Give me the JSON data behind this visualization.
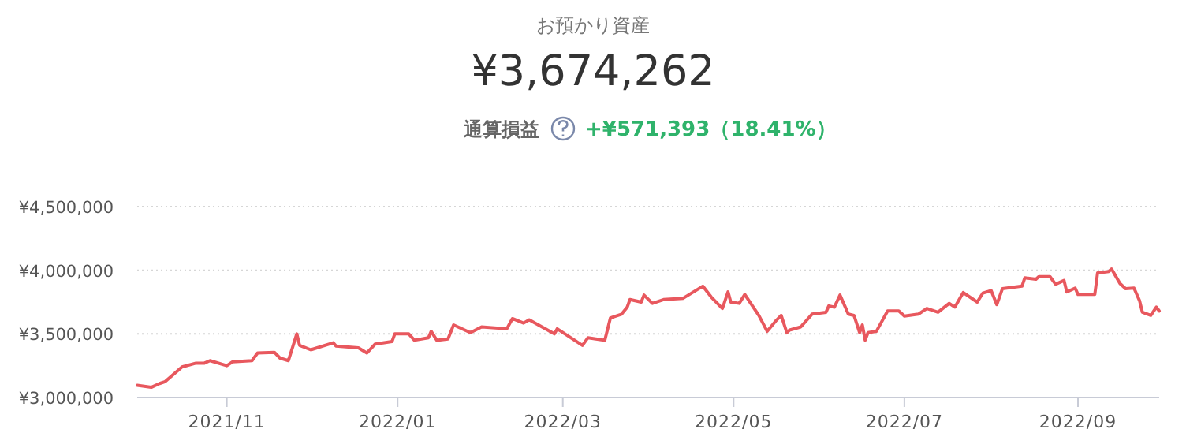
{
  "chart_data": {
    "type": "line",
    "title": "お預かり資産",
    "subtitle": "¥3,674,262",
    "annotations": [
      "通算損益",
      "+¥571,393（18.41%）"
    ],
    "x": [
      "2021-09-30",
      "2021-10-05",
      "2021-10-08",
      "2021-10-10",
      "2021-10-16",
      "2021-10-21",
      "2021-10-24",
      "2021-10-26",
      "2021-11-01",
      "2021-11-03",
      "2021-11-10",
      "2021-11-12",
      "2021-11-18",
      "2021-11-20",
      "2021-11-23",
      "2021-11-26",
      "2021-11-27",
      "2021-12-01",
      "2021-12-09",
      "2021-12-10",
      "2021-12-18",
      "2021-12-21",
      "2021-12-24",
      "2021-12-30",
      "2021-12-31",
      "2022-01-05",
      "2022-01-07",
      "2022-01-12",
      "2022-01-13",
      "2022-01-15",
      "2022-01-19",
      "2022-01-21",
      "2022-01-27",
      "2022-01-31",
      "2022-02-09",
      "2022-02-11",
      "2022-02-15",
      "2022-02-17",
      "2022-02-26",
      "2022-02-27",
      "2022-03-08",
      "2022-03-10",
      "2022-03-16",
      "2022-03-18",
      "2022-03-22",
      "2022-03-24",
      "2022-03-25",
      "2022-03-29",
      "2022-03-30",
      "2022-04-02",
      "2022-04-06",
      "2022-04-13",
      "2022-04-20",
      "2022-04-23",
      "2022-04-27",
      "2022-04-29",
      "2022-04-30",
      "2022-05-03",
      "2022-05-05",
      "2022-05-10",
      "2022-05-13",
      "2022-05-16",
      "2022-05-18",
      "2022-05-20",
      "2022-05-21",
      "2022-05-25",
      "2022-05-29",
      "2022-06-03",
      "2022-06-04",
      "2022-06-06",
      "2022-06-08",
      "2022-06-11",
      "2022-06-13",
      "2022-06-15",
      "2022-06-16",
      "2022-06-17",
      "2022-06-18",
      "2022-06-21",
      "2022-06-25",
      "2022-06-29",
      "2022-07-01",
      "2022-07-06",
      "2022-07-09",
      "2022-07-13",
      "2022-07-17",
      "2022-07-19",
      "2022-07-22",
      "2022-07-27",
      "2022-07-29",
      "2022-08-01",
      "2022-08-03",
      "2022-08-05",
      "2022-08-12",
      "2022-08-13",
      "2022-08-17",
      "2022-08-18",
      "2022-08-22",
      "2022-08-24",
      "2022-08-27",
      "2022-08-28",
      "2022-08-31",
      "2022-09-01",
      "2022-09-07",
      "2022-09-08",
      "2022-09-12",
      "2022-09-13",
      "2022-09-16",
      "2022-09-18",
      "2022-09-21",
      "2022-09-23",
      "2022-09-24",
      "2022-09-27",
      "2022-09-29",
      "2022-09-30"
    ],
    "series": [
      {
        "color": "#e8585e",
        "values": [
          3096000,
          3080000,
          3110000,
          3125000,
          3240000,
          3270000,
          3270000,
          3290000,
          3250000,
          3280000,
          3290000,
          3350000,
          3355000,
          3310000,
          3290000,
          3500000,
          3410000,
          3375000,
          3430000,
          3405000,
          3390000,
          3350000,
          3420000,
          3440000,
          3500000,
          3500000,
          3450000,
          3470000,
          3520000,
          3450000,
          3460000,
          3570000,
          3510000,
          3555000,
          3540000,
          3620000,
          3585000,
          3610000,
          3500000,
          3540000,
          3410000,
          3470000,
          3450000,
          3625000,
          3655000,
          3710000,
          3770000,
          3750000,
          3805000,
          3740000,
          3770000,
          3780000,
          3875000,
          3790000,
          3700000,
          3830000,
          3750000,
          3740000,
          3810000,
          3645000,
          3520000,
          3600000,
          3645000,
          3510000,
          3530000,
          3555000,
          3655000,
          3670000,
          3720000,
          3710000,
          3805000,
          3655000,
          3645000,
          3510000,
          3570000,
          3450000,
          3510000,
          3520000,
          3680000,
          3680000,
          3640000,
          3655000,
          3700000,
          3670000,
          3740000,
          3710000,
          3825000,
          3750000,
          3820000,
          3840000,
          3730000,
          3855000,
          3875000,
          3940000,
          3930000,
          3950000,
          3950000,
          3890000,
          3920000,
          3830000,
          3860000,
          3810000,
          3810000,
          3980000,
          3990000,
          4010000,
          3895000,
          3855000,
          3860000,
          3760000,
          3670000,
          3645000,
          3710000,
          3680000
        ]
      }
    ],
    "xlim": [
      "2021-09-30",
      "2022-09-30"
    ],
    "xticks": [
      {
        "value": "2021-11-01",
        "label": "2021/11"
      },
      {
        "value": "2022-01-01",
        "label": "2022/01"
      },
      {
        "value": "2022-03-01",
        "label": "2022/03"
      },
      {
        "value": "2022-05-01",
        "label": "2022/05"
      },
      {
        "value": "2022-07-01",
        "label": "2022/07"
      },
      {
        "value": "2022-09-01",
        "label": "2022/09"
      }
    ],
    "ylim": [
      3000000,
      4500000
    ],
    "yticks": [
      {
        "value": 3000000,
        "label": "¥3,000,000"
      },
      {
        "value": 3500000,
        "label": "¥3,500,000"
      },
      {
        "value": 4000000,
        "label": "¥4,000,000"
      },
      {
        "value": 4500000,
        "label": "¥4,500,000"
      }
    ],
    "grid": "y",
    "marker": "none",
    "line_style": "solid"
  }
}
